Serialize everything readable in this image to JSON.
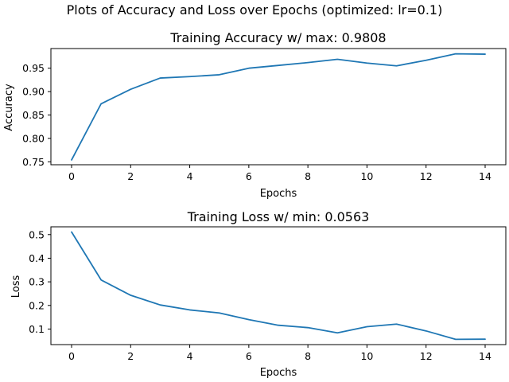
{
  "figure": {
    "suptitle": "Plots of Accuracy and Loss over Epochs (optimized: lr=0.1)"
  },
  "chart_data": [
    {
      "type": "line",
      "title": "Training Accuracy w/ max: 0.9808",
      "xlabel": "Epochs",
      "ylabel": "Accuracy",
      "xlim": [
        -0.7,
        14.7
      ],
      "ylim": [
        0.7437,
        0.992
      ],
      "x_ticks": [
        0,
        2,
        4,
        6,
        8,
        10,
        12,
        14
      ],
      "x_tick_labels": [
        "0",
        "2",
        "4",
        "6",
        "8",
        "10",
        "12",
        "14"
      ],
      "y_ticks": [
        0.75,
        0.8,
        0.85,
        0.9,
        0.95
      ],
      "y_tick_labels": [
        "0.75",
        "0.80",
        "0.85",
        "0.90",
        "0.95"
      ],
      "grid": false,
      "series": [
        {
          "color": "#1f77b4",
          "x": [
            0,
            1,
            2,
            3,
            4,
            5,
            6,
            7,
            8,
            9,
            10,
            11,
            12,
            13,
            14
          ],
          "values": [
            0.754,
            0.874,
            0.905,
            0.929,
            0.932,
            0.936,
            0.95,
            0.956,
            0.962,
            0.969,
            0.961,
            0.955,
            0.967,
            0.9808,
            0.98
          ]
        }
      ]
    },
    {
      "type": "line",
      "title": "Training Loss w/ min: 0.0563",
      "xlabel": "Epochs",
      "ylabel": "Loss",
      "xlim": [
        -0.7,
        14.7
      ],
      "ylim": [
        0.0341,
        0.533
      ],
      "x_ticks": [
        0,
        2,
        4,
        6,
        8,
        10,
        12,
        14
      ],
      "x_tick_labels": [
        "0",
        "2",
        "4",
        "6",
        "8",
        "10",
        "12",
        "14"
      ],
      "y_ticks": [
        0.1,
        0.2,
        0.3,
        0.4,
        0.5
      ],
      "y_tick_labels": [
        "0.1",
        "0.2",
        "0.3",
        "0.4",
        "0.5"
      ],
      "grid": false,
      "series": [
        {
          "color": "#1f77b4",
          "x": [
            0,
            1,
            2,
            3,
            4,
            5,
            6,
            7,
            8,
            9,
            10,
            11,
            12,
            13,
            14
          ],
          "values": [
            0.511,
            0.308,
            0.243,
            0.202,
            0.181,
            0.168,
            0.14,
            0.116,
            0.106,
            0.084,
            0.11,
            0.121,
            0.092,
            0.0563,
            0.057
          ]
        }
      ]
    }
  ]
}
